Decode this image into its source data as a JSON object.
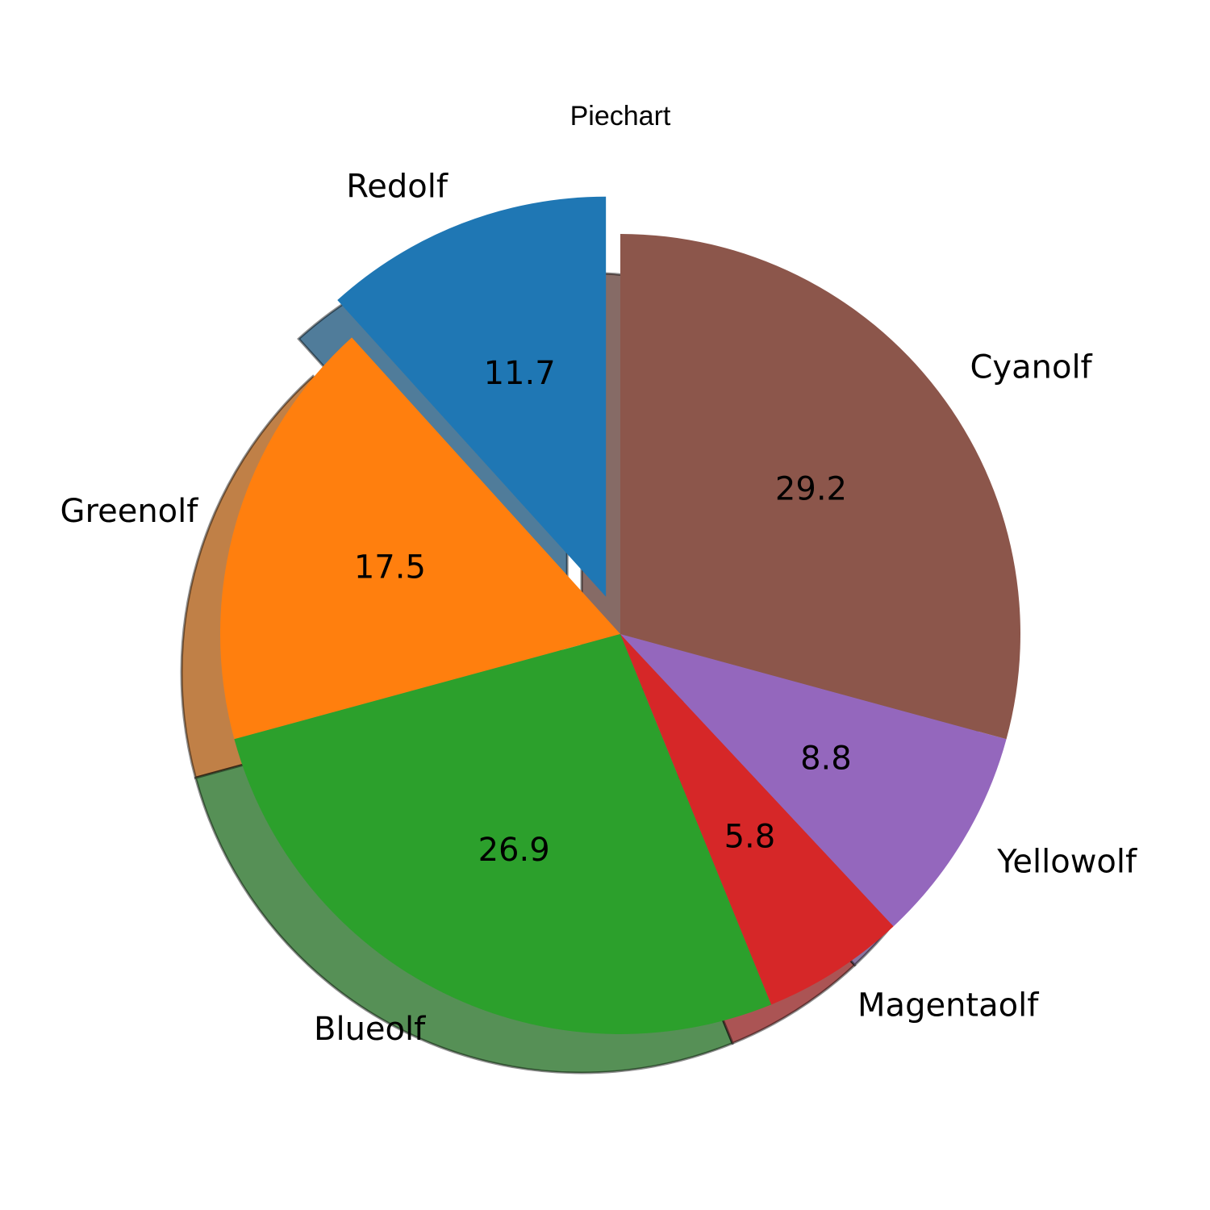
{
  "chart_data": {
    "type": "pie",
    "title": "Piechart",
    "labels": [
      "Redolf",
      "Greenolf",
      "Blueolf",
      "Magentaolf",
      "Yellowolf",
      "Cyanolf"
    ],
    "values": [
      11.7,
      17.5,
      26.9,
      5.8,
      8.8,
      29.2
    ],
    "value_labels": [
      "11.7",
      "17.5",
      "26.9",
      "5.8",
      "8.8",
      "29.2"
    ],
    "colors": [
      "#1f77b4",
      "#ff7f0e",
      "#2ca02c",
      "#d62728",
      "#9467bd",
      "#8c564b"
    ],
    "explode": [
      0.1,
      0,
      0,
      0,
      0,
      0
    ],
    "start_angle_deg": 90,
    "direction": "counterclockwise",
    "shadow": true
  }
}
